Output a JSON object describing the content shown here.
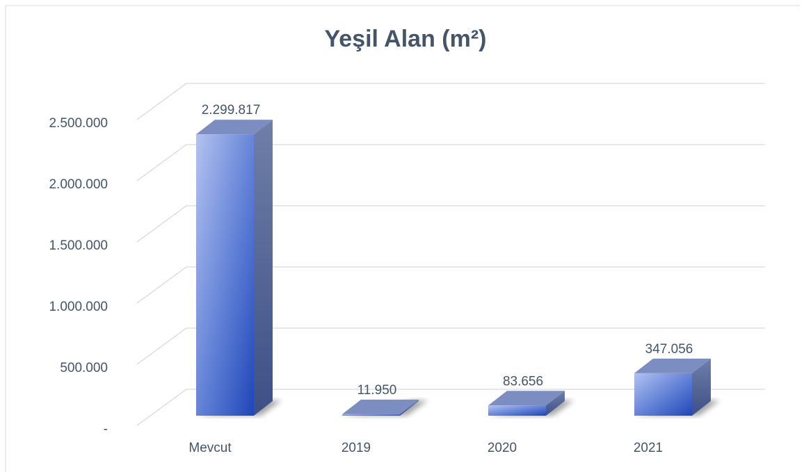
{
  "chart_data": {
    "type": "bar3d",
    "title": "Yeşil Alan (m²)",
    "categories": [
      "Mevcut",
      "2019",
      "2020",
      "2021"
    ],
    "values": [
      2299817,
      11950,
      83656,
      347056
    ],
    "value_labels": [
      "2.299.817",
      "11.950",
      "83.656",
      "347.056"
    ],
    "color": "#3b5fc4",
    "ylim": [
      0,
      2500000
    ],
    "yticks": [
      {
        "value": 0,
        "label": "-"
      },
      {
        "value": 500000,
        "label": "500.000"
      },
      {
        "value": 1000000,
        "label": "1.000.000"
      },
      {
        "value": 1500000,
        "label": "1.500.000"
      },
      {
        "value": 2000000,
        "label": "2.000.000"
      },
      {
        "value": 2500000,
        "label": "2.500.000"
      }
    ],
    "grid": true
  }
}
